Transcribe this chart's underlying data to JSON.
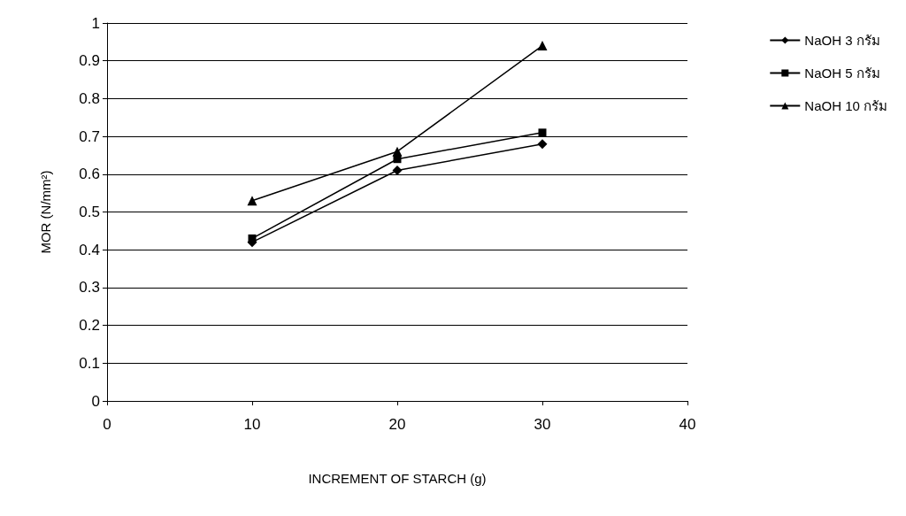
{
  "chart_data": {
    "type": "line",
    "xlabel": "INCREMENT OF STARCH (g)",
    "ylabel": "MOR (N/mm²)",
    "x": [
      10,
      20,
      30
    ],
    "series": [
      {
        "name": "NaOH 3 กรัม",
        "color": "#000000",
        "marker": "diamond",
        "values": [
          0.42,
          0.61,
          0.68
        ]
      },
      {
        "name": "NaOH 5 กรัม",
        "color": "#000000",
        "marker": "square",
        "values": [
          0.43,
          0.64,
          0.71
        ]
      },
      {
        "name": "NaOH 10 กรัม",
        "color": "#000000",
        "marker": "triangle",
        "values": [
          0.53,
          0.66,
          0.94
        ]
      }
    ],
    "xlim": [
      0,
      40
    ],
    "xticks": [
      0,
      10,
      20,
      30,
      40
    ],
    "ylim": [
      0,
      1
    ],
    "yticks": [
      0,
      0.1,
      0.2,
      0.3,
      0.4,
      0.5,
      0.6,
      0.7,
      0.8,
      0.9,
      1
    ],
    "grid": "y",
    "legend": "top right",
    "line_style": "solid"
  }
}
